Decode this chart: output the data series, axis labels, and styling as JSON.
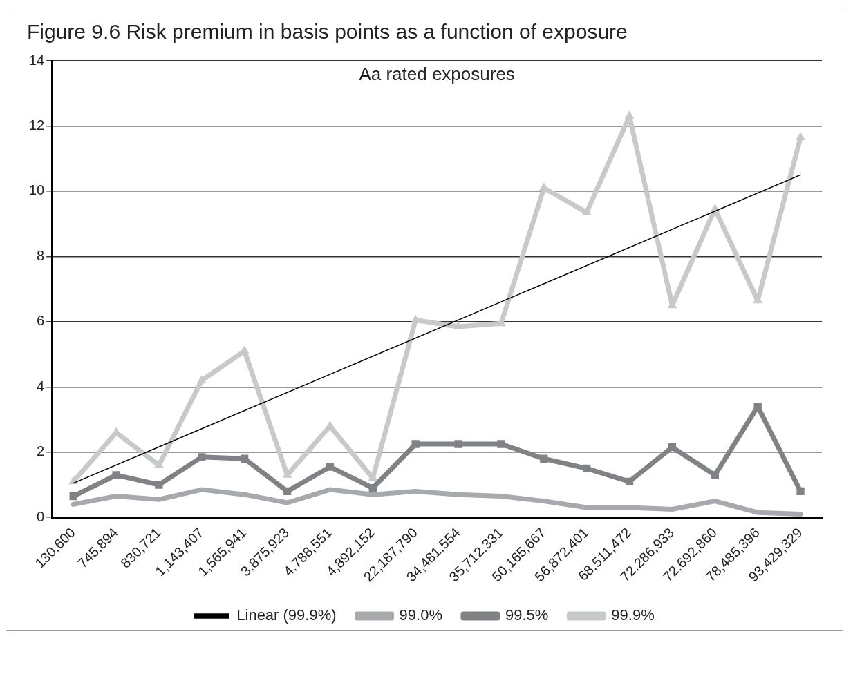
{
  "chart_data": {
    "type": "line",
    "title": "Figure 9.6  Risk premium in basis points as a function of exposure",
    "subtitle": "Aa rated exposures",
    "categories": [
      "130,600",
      "745,894",
      "830,721",
      "1,143,407",
      "1,565,941",
      "3,875,923",
      "4,788,551",
      "4,892,152",
      "22,187,790",
      "34,481,554",
      "35,712,331",
      "50,165,667",
      "56,872,401",
      "68,511,472",
      "72,286,933",
      "72,692,860",
      "78,485,396",
      "93,429,329"
    ],
    "series": [
      {
        "name": "99.0%",
        "color": "#a7a9ac",
        "marker": "none",
        "values": [
          0.4,
          0.65,
          0.55,
          0.85,
          0.7,
          0.45,
          0.85,
          0.7,
          0.8,
          0.7,
          0.65,
          0.5,
          0.3,
          0.3,
          0.25,
          0.5,
          0.15,
          0.1
        ]
      },
      {
        "name": "99.5%",
        "color": "#808285",
        "marker": "square",
        "values": [
          0.65,
          1.3,
          1.0,
          1.85,
          1.8,
          0.8,
          1.55,
          0.9,
          2.25,
          2.25,
          2.25,
          1.8,
          1.5,
          1.1,
          2.15,
          1.3,
          3.4,
          0.8
        ]
      },
      {
        "name": "99.9%",
        "color": "#c8c9cb",
        "marker": "triangle",
        "values": [
          1.1,
          2.6,
          1.6,
          4.2,
          5.1,
          1.3,
          2.8,
          1.2,
          6.05,
          5.85,
          5.95,
          10.1,
          9.35,
          12.3,
          6.5,
          9.45,
          6.65,
          11.65
        ]
      },
      {
        "name": "Linear (99.9%)",
        "color": "#000000",
        "marker": "none",
        "x": [
          "130,600",
          "93,429,329"
        ],
        "values": [
          1.05,
          10.5
        ]
      }
    ],
    "ylim": [
      0,
      14
    ],
    "yticks": [
      0,
      2,
      4,
      6,
      8,
      10,
      12,
      14
    ],
    "grid": "y",
    "legend": "bottom"
  }
}
